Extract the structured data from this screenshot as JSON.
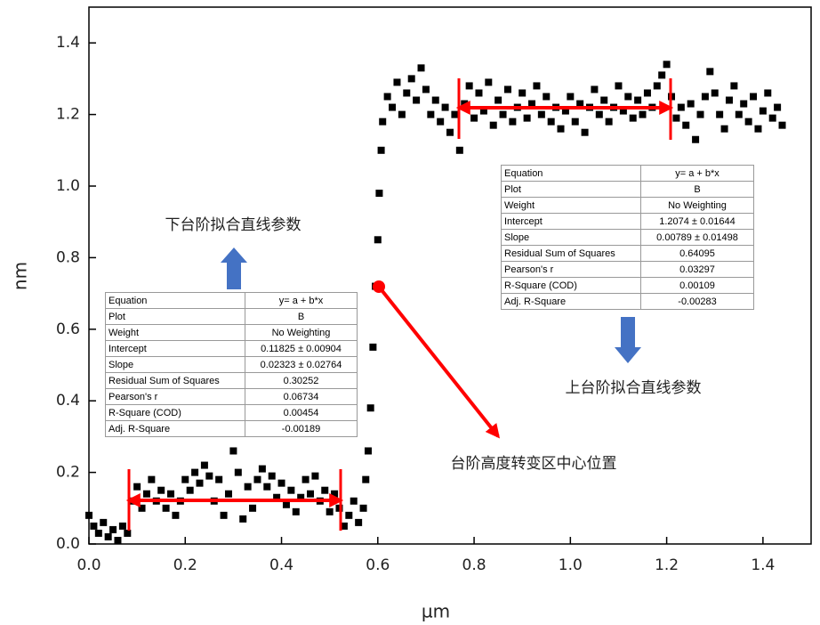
{
  "chart_data": {
    "type": "scatter",
    "x_label": "µm",
    "y_label": "nm",
    "color": "#000000",
    "xlim": [
      0,
      1.5
    ],
    "ylim": [
      0,
      1.5
    ],
    "xticks": [
      {
        "value": 0,
        "label": "0.0"
      },
      0.2,
      0.4,
      0.6,
      0.8,
      {
        "value": 1,
        "label": "1.0"
      },
      1.2,
      1.4
    ],
    "yticks": [
      {
        "value": 0,
        "label": "0.0"
      },
      0.2,
      0.4,
      0.6,
      0.8,
      {
        "value": 1,
        "label": "1.0"
      },
      1.2,
      1.4
    ],
    "x": [
      0.0,
      0.01,
      0.02,
      0.03,
      0.04,
      0.05,
      0.06,
      0.07,
      0.08,
      0.09,
      0.1,
      0.11,
      0.12,
      0.13,
      0.14,
      0.15,
      0.16,
      0.17,
      0.18,
      0.19,
      0.2,
      0.21,
      0.22,
      0.23,
      0.24,
      0.25,
      0.26,
      0.27,
      0.28,
      0.29,
      0.3,
      0.31,
      0.32,
      0.33,
      0.34,
      0.35,
      0.36,
      0.37,
      0.38,
      0.39,
      0.4,
      0.41,
      0.42,
      0.43,
      0.44,
      0.45,
      0.46,
      0.47,
      0.48,
      0.49,
      0.5,
      0.51,
      0.52,
      0.53,
      0.54,
      0.55,
      0.56,
      0.57,
      0.575,
      0.58,
      0.585,
      0.59,
      0.595,
      0.6,
      0.603,
      0.607,
      0.61,
      0.62,
      0.63,
      0.64,
      0.65,
      0.66,
      0.67,
      0.68,
      0.69,
      0.7,
      0.71,
      0.72,
      0.73,
      0.74,
      0.75,
      0.76,
      0.77,
      0.78,
      0.79,
      0.8,
      0.81,
      0.82,
      0.83,
      0.84,
      0.85,
      0.86,
      0.87,
      0.88,
      0.89,
      0.9,
      0.91,
      0.92,
      0.93,
      0.94,
      0.95,
      0.96,
      0.97,
      0.98,
      0.99,
      1.0,
      1.01,
      1.02,
      1.03,
      1.04,
      1.05,
      1.06,
      1.07,
      1.08,
      1.09,
      1.1,
      1.11,
      1.12,
      1.13,
      1.14,
      1.15,
      1.16,
      1.17,
      1.18,
      1.19,
      1.2,
      1.21,
      1.22,
      1.23,
      1.24,
      1.25,
      1.26,
      1.27,
      1.28,
      1.29,
      1.3,
      1.31,
      1.32,
      1.33,
      1.34,
      1.35,
      1.36,
      1.37,
      1.38,
      1.39,
      1.4,
      1.41,
      1.42,
      1.43,
      1.44
    ],
    "values": [
      0.08,
      0.05,
      0.03,
      0.06,
      0.02,
      0.04,
      0.01,
      0.05,
      0.03,
      0.12,
      0.16,
      0.1,
      0.14,
      0.18,
      0.12,
      0.15,
      0.1,
      0.14,
      0.08,
      0.12,
      0.18,
      0.15,
      0.2,
      0.17,
      0.22,
      0.19,
      0.12,
      0.18,
      0.08,
      0.14,
      0.26,
      0.2,
      0.07,
      0.16,
      0.1,
      0.18,
      0.21,
      0.16,
      0.19,
      0.13,
      0.17,
      0.11,
      0.15,
      0.09,
      0.13,
      0.18,
      0.14,
      0.19,
      0.12,
      0.15,
      0.09,
      0.14,
      0.1,
      0.05,
      0.08,
      0.12,
      0.06,
      0.1,
      0.18,
      0.26,
      0.38,
      0.55,
      0.72,
      0.85,
      0.98,
      1.1,
      1.18,
      1.25,
      1.22,
      1.29,
      1.2,
      1.26,
      1.3,
      1.24,
      1.33,
      1.27,
      1.2,
      1.24,
      1.18,
      1.22,
      1.15,
      1.2,
      1.1,
      1.23,
      1.28,
      1.19,
      1.26,
      1.21,
      1.29,
      1.17,
      1.24,
      1.2,
      1.27,
      1.18,
      1.22,
      1.26,
      1.19,
      1.23,
      1.28,
      1.2,
      1.25,
      1.18,
      1.22,
      1.16,
      1.21,
      1.25,
      1.18,
      1.23,
      1.15,
      1.22,
      1.27,
      1.2,
      1.24,
      1.18,
      1.22,
      1.28,
      1.21,
      1.25,
      1.19,
      1.24,
      1.2,
      1.26,
      1.22,
      1.28,
      1.31,
      1.34,
      1.25,
      1.19,
      1.22,
      1.17,
      1.23,
      1.13,
      1.2,
      1.25,
      1.32,
      1.26,
      1.2,
      1.16,
      1.24,
      1.28,
      1.2,
      1.23,
      1.18,
      1.25,
      1.16,
      1.21,
      1.26,
      1.19,
      1.22,
      1.17
    ]
  },
  "annotations": {
    "lower_label": "下台阶拟合直线参数",
    "upper_label": "上台阶拟合直线参数",
    "center_label": "台阶高度转变区中心位置"
  },
  "lower_fit": {
    "rows": [
      [
        "Equation",
        "y= a + b*x"
      ],
      [
        "Plot",
        "B"
      ],
      [
        "Weight",
        "No Weighting"
      ],
      [
        "Intercept",
        "0.11825 ± 0.00904"
      ],
      [
        "Slope",
        "0.02323 ± 0.02764"
      ],
      [
        "Residual Sum of Squares",
        "0.30252"
      ],
      [
        "Pearson's r",
        "0.06734"
      ],
      [
        "R-Square (COD)",
        "0.00454"
      ],
      [
        "Adj. R-Square",
        "-0.00189"
      ]
    ]
  },
  "upper_fit": {
    "rows": [
      [
        "Equation",
        "y= a + b*x"
      ],
      [
        "Plot",
        "B"
      ],
      [
        "Weight",
        "No Weighting"
      ],
      [
        "Intercept",
        "1.2074 ± 0.01644"
      ],
      [
        "Slope",
        "0.00789 ± 0.01498"
      ],
      [
        "Residual Sum of Squares",
        "0.64095"
      ],
      [
        "Pearson's r",
        "0.03297"
      ],
      [
        "R-Square (COD)",
        "0.00109"
      ],
      [
        "Adj. R-Square",
        "-0.00283"
      ]
    ]
  }
}
